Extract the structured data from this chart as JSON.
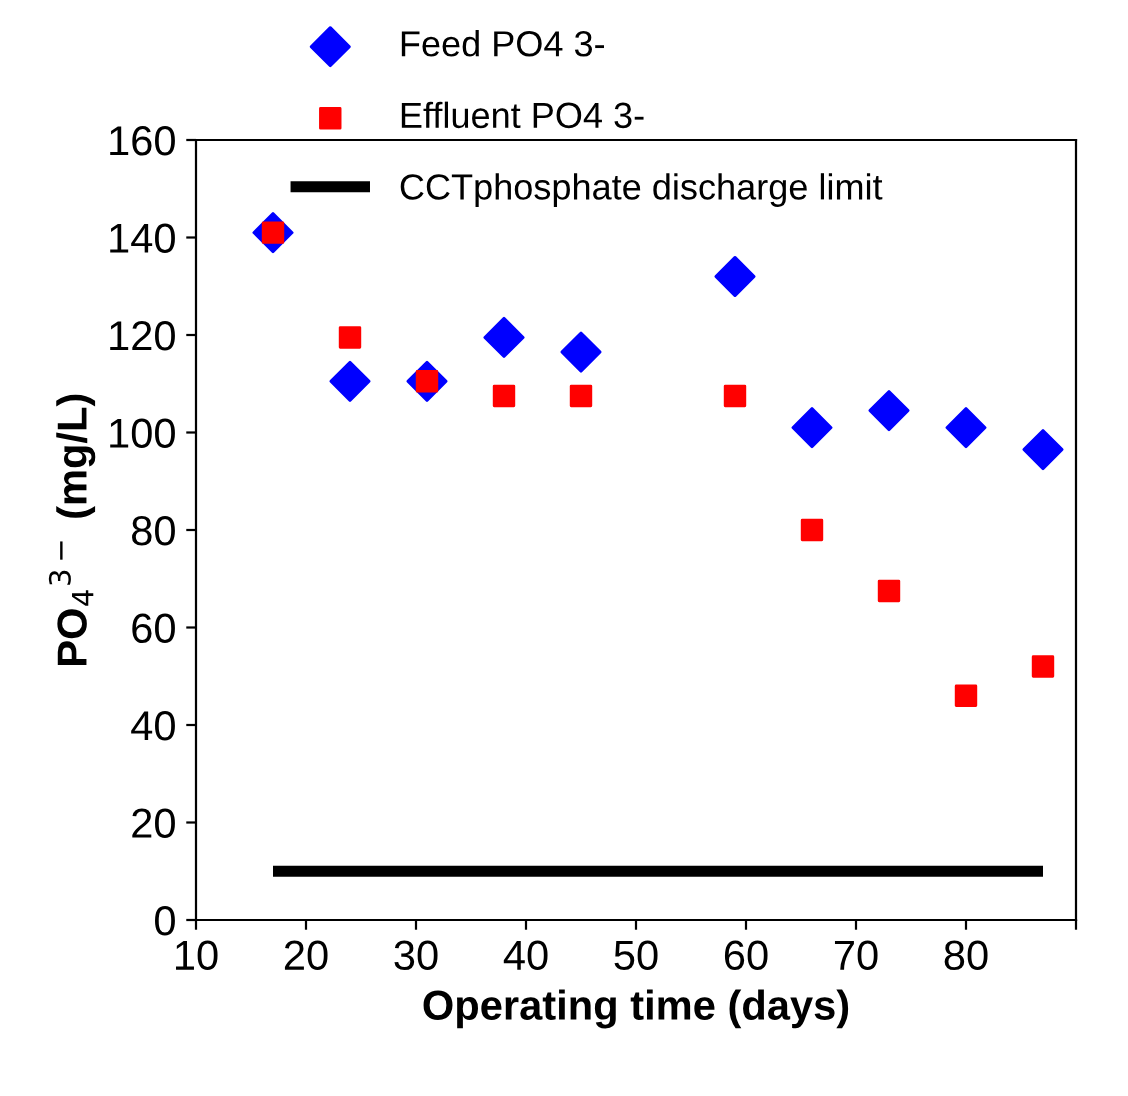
{
  "chart_data": {
    "type": "scatter",
    "xlabel": "Operating time (days)",
    "ylabel": "PO$_{4}$$^{3−}$ (mg/L)",
    "xlim": [
      10,
      90
    ],
    "xticks": [
      10,
      20,
      30,
      40,
      50,
      60,
      70,
      80,
      {
        "value": 90,
        "label": null
      }
    ],
    "ylim": [
      0,
      160
    ],
    "yticks": [
      0,
      20,
      40,
      60,
      80,
      100,
      120,
      140,
      160
    ],
    "grid": false,
    "legend": "top",
    "series": [
      {
        "name": "Feed PO4 3-",
        "color": "#0000ff",
        "marker": "diamond",
        "x": [
          17,
          24,
          31,
          38,
          45,
          59,
          66,
          73,
          80,
          87
        ],
        "values": [
          141,
          110.5,
          110.5,
          119.5,
          116.5,
          132,
          101,
          104.5,
          101,
          96.5
        ]
      },
      {
        "name": "Effluent PO4 3-",
        "color": "#ff0000",
        "marker": "square",
        "x": [
          17,
          24,
          31,
          38,
          45,
          59,
          66,
          73,
          80,
          87
        ],
        "values": [
          141,
          119.5,
          110.5,
          107.5,
          107.5,
          107.5,
          80,
          67.5,
          46,
          52
        ]
      },
      {
        "name": "CCTphosphate discharge limit",
        "color": "#000000",
        "type": "line",
        "marker": "none",
        "x": [
          17,
          87
        ],
        "values": [
          10,
          10
        ]
      }
    ]
  }
}
